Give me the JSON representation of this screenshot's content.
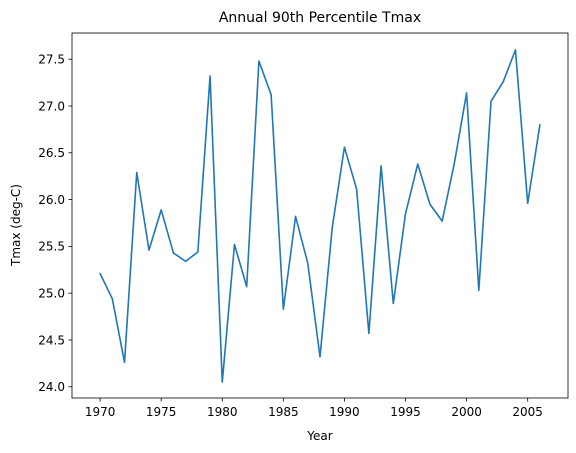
{
  "chart_data": {
    "type": "line",
    "title": "Annual 90th Percentile Tmax",
    "xlabel": "Year",
    "ylabel": "Tmax (deg-C)",
    "xlim": [
      1967.7,
      2008.3
    ],
    "ylim": [
      23.88,
      27.78
    ],
    "xticks": [
      1970,
      1975,
      1980,
      1985,
      1990,
      1995,
      2000,
      2005
    ],
    "yticks": [
      24.0,
      24.5,
      25.0,
      25.5,
      26.0,
      26.5,
      27.0,
      27.5
    ],
    "grid": false,
    "line_color": "#1f77b4",
    "series": [
      {
        "x": [
          1970,
          1971,
          1972,
          1973,
          1974,
          1975,
          1976,
          1977,
          1978,
          1979,
          1980,
          1981,
          1982,
          1983,
          1984,
          1985,
          1986,
          1987,
          1988,
          1989,
          1990,
          1991,
          1992,
          1993,
          1994,
          1995,
          1996,
          1997,
          1998,
          1999,
          2000,
          2001,
          2002,
          2003,
          2004,
          2005,
          2006
        ],
        "values": [
          25.21,
          24.94,
          24.26,
          26.29,
          25.46,
          25.89,
          25.43,
          25.34,
          25.44,
          27.32,
          24.05,
          25.52,
          25.07,
          27.48,
          27.12,
          24.83,
          25.82,
          25.32,
          24.32,
          25.7,
          26.56,
          26.11,
          24.57,
          26.36,
          24.89,
          25.85,
          26.38,
          25.95,
          25.77,
          26.39,
          27.14,
          25.03,
          27.05,
          27.26,
          27.6,
          25.96,
          26.8
        ]
      }
    ]
  }
}
